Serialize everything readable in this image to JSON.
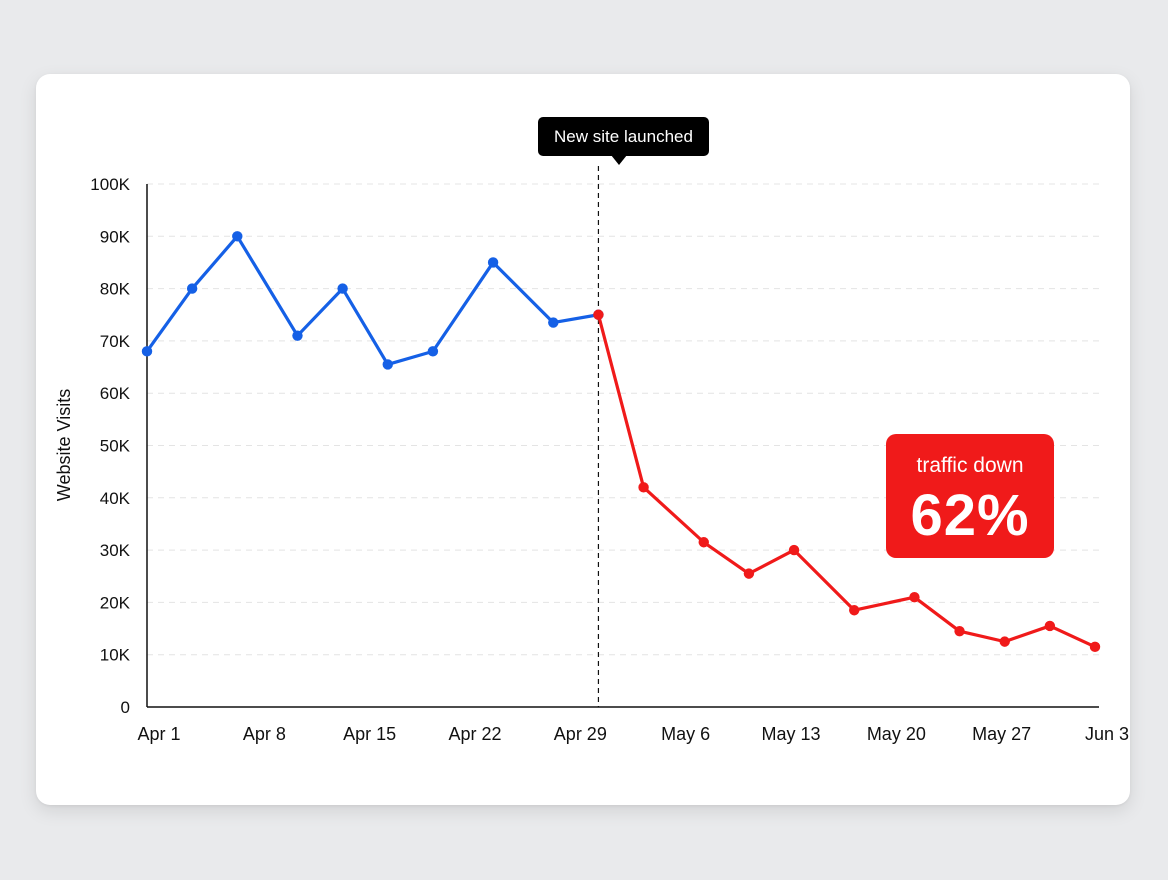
{
  "colors": {
    "before": "#1560e6",
    "after": "#f01a1a",
    "grid": "#e4e4e4",
    "axis": "#111111"
  },
  "annotation": {
    "label": "New site launched",
    "x": "May 1"
  },
  "badge": {
    "caption": "traffic down",
    "value": "62%"
  },
  "chart_data": {
    "type": "line",
    "ylabel": "Website Visits",
    "xlabel": "",
    "ylim": [
      0,
      100000
    ],
    "y_ticks": [
      "0",
      "10K",
      "20K",
      "30K",
      "40K",
      "50K",
      "60K",
      "70K",
      "80K",
      "90K",
      "100K"
    ],
    "x_ticks": [
      "Apr 1",
      "Apr 8",
      "Apr 15",
      "Apr 22",
      "Apr 29",
      "May 6",
      "May 13",
      "May 20",
      "May 27",
      "Jun 3"
    ],
    "grid": true,
    "series": [
      {
        "color": "#1560e6",
        "points": [
          {
            "x": "Apr 1",
            "y": 68000
          },
          {
            "x": "Apr 4",
            "y": 80000
          },
          {
            "x": "Apr 7",
            "y": 90000
          },
          {
            "x": "Apr 11",
            "y": 71000
          },
          {
            "x": "Apr 14",
            "y": 80000
          },
          {
            "x": "Apr 17",
            "y": 65500
          },
          {
            "x": "Apr 20",
            "y": 68000
          },
          {
            "x": "Apr 24",
            "y": 85000
          },
          {
            "x": "Apr 28",
            "y": 73500
          },
          {
            "x": "May 1",
            "y": 75000
          }
        ]
      },
      {
        "color": "#f01a1a",
        "points": [
          {
            "x": "May 1",
            "y": 75000
          },
          {
            "x": "May 4",
            "y": 42000
          },
          {
            "x": "May 8",
            "y": 31500
          },
          {
            "x": "May 11",
            "y": 25500
          },
          {
            "x": "May 14",
            "y": 30000
          },
          {
            "x": "May 18",
            "y": 18500
          },
          {
            "x": "May 22",
            "y": 21000
          },
          {
            "x": "May 25",
            "y": 14500
          },
          {
            "x": "May 28",
            "y": 12500
          },
          {
            "x": "May 31",
            "y": 15500
          },
          {
            "x": "Jun 3",
            "y": 11500
          }
        ]
      }
    ]
  }
}
